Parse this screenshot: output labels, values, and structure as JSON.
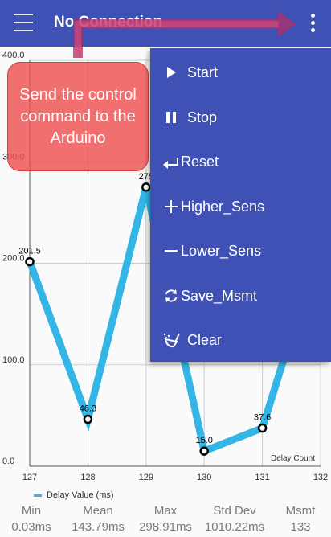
{
  "appbar": {
    "title": "No Connection"
  },
  "menu": {
    "items": [
      {
        "label": "Start",
        "icon": "play-icon"
      },
      {
        "label": "Stop",
        "icon": "pause-icon"
      },
      {
        "label": "Reset",
        "icon": "return-arrow-icon"
      },
      {
        "label": "Higher_Sens",
        "icon": "plus-icon"
      },
      {
        "label": "Lower_Sens",
        "icon": "minus-icon"
      },
      {
        "label": "Save_Msmt",
        "icon": "refresh-icon"
      },
      {
        "label": "Clear",
        "icon": "broom-icon"
      }
    ]
  },
  "callout": {
    "text": "Send the control command to the Arduino",
    "color": "#f05050"
  },
  "colors": {
    "primary": "#3f51b5",
    "line": "#33b5e5",
    "arrow": "#b0306a"
  },
  "chart_data": {
    "type": "line",
    "x": [
      127,
      128,
      129,
      130,
      131,
      132
    ],
    "series": [
      {
        "name": "Delay Value (ms)",
        "points": [
          {
            "x": 127,
            "y": 201.5,
            "label": "201.5"
          },
          {
            "x": 128,
            "y": 46.3,
            "label": "46.3"
          },
          {
            "x": 129,
            "y": 275.0,
            "label": "275"
          },
          {
            "x": 130,
            "y": 15.0,
            "label": "15.0"
          },
          {
            "x": 131,
            "y": 37.6,
            "label": "37.6"
          },
          {
            "x": 131.5,
            "y": 130.0,
            "label": ""
          }
        ]
      }
    ],
    "xticks": [
      "127",
      "128",
      "129",
      "130",
      "131",
      "132"
    ],
    "yticks": [
      "0.0",
      "100.0",
      "200.0",
      "300.0",
      "400.0"
    ],
    "xlabel": "Delay Count",
    "ylabel": "",
    "xlim": [
      127,
      132
    ],
    "ylim": [
      0,
      400
    ],
    "grid": true,
    "legend": "bottom-left"
  },
  "stats": {
    "min": {
      "label": "Min",
      "value": "0.03ms"
    },
    "mean": {
      "label": "Mean",
      "value": "143.79ms"
    },
    "max": {
      "label": "Max",
      "value": "298.91ms"
    },
    "std": {
      "label": "Std Dev",
      "value": "1010.22ms"
    },
    "msmt": {
      "label": "Msmt",
      "value": "133"
    }
  }
}
